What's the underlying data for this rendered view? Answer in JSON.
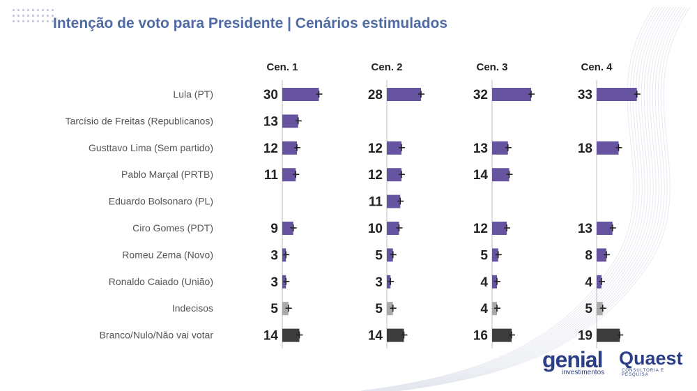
{
  "title": "Intenção de voto para Presidente | Cenários estimulados",
  "brand": {
    "genial_name": "genial",
    "genial_sub": "investimentos",
    "quaest_name": "Quaest",
    "quaest_sub": "CONSULTORIA E PESQUISA"
  },
  "colors": {
    "candidate": "#6654a0",
    "undecided": "#a9a9a9",
    "blank": "#3c3c3c",
    "title": "#4f6ba6"
  },
  "chart_data": {
    "type": "bar",
    "title": "Intenção de voto para Presidente | Cenários estimulados",
    "categories": [
      "Lula (PT)",
      "Tarcísio de Freitas (Republicanos)",
      "Gusttavo Lima (Sem partido)",
      "Pablo Marçal (PRTB)",
      "Eduardo Bolsonaro (PL)",
      "Ciro Gomes (PDT)",
      "Romeu Zema (Novo)",
      "Ronaldo Caiado (União)",
      "Indecisos",
      "Branco/Nulo/Não vai votar"
    ],
    "series": [
      {
        "name": "Cen. 1",
        "values": [
          30,
          13,
          12,
          11,
          null,
          9,
          3,
          3,
          5,
          14
        ]
      },
      {
        "name": "Cen. 2",
        "values": [
          28,
          null,
          12,
          12,
          11,
          10,
          5,
          3,
          5,
          14
        ]
      },
      {
        "name": "Cen. 3",
        "values": [
          32,
          null,
          13,
          14,
          null,
          12,
          5,
          4,
          4,
          16
        ]
      },
      {
        "name": "Cen. 4",
        "values": [
          33,
          null,
          18,
          null,
          null,
          13,
          8,
          4,
          5,
          19
        ]
      }
    ],
    "category_types": [
      "candidate",
      "candidate",
      "candidate",
      "candidate",
      "candidate",
      "candidate",
      "candidate",
      "candidate",
      "undecided",
      "blank"
    ]
  }
}
